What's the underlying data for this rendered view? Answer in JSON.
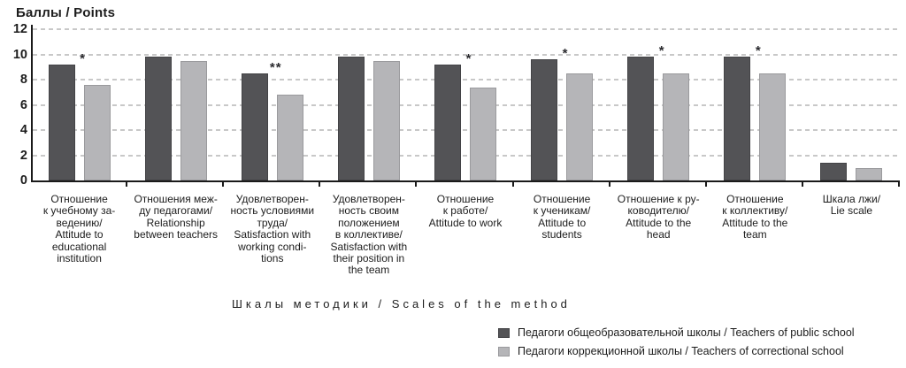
{
  "chart_data": {
    "type": "bar",
    "title": "",
    "ylabel": "Баллы / Points",
    "xlabel": "Шкалы методики / Scales of the method",
    "ylim": [
      0,
      12
    ],
    "ytick_step": 2,
    "grid": "horizontal-dashed",
    "legend_position": "bottom-right",
    "categories": [
      {
        "lines": [
          "Отношение",
          "к учебному за-",
          "ведению/",
          "Attitude to",
          "educational",
          "institution"
        ]
      },
      {
        "lines": [
          "Отношения меж-",
          "ду педагогами/",
          "Relationship",
          "between teachers"
        ]
      },
      {
        "lines": [
          "Удовлетворен-",
          "ность условиями",
          "труда/",
          "Satisfaction with",
          "working condi-",
          "tions"
        ]
      },
      {
        "lines": [
          "Удовлетворен-",
          "ность своим",
          "положением",
          "в коллективе/",
          "Satisfaction with",
          "their position in",
          "the team"
        ]
      },
      {
        "lines": [
          "Отношение",
          "к работе/",
          "Attitude to work"
        ]
      },
      {
        "lines": [
          "Отношение",
          "к ученикам/",
          "Attitude to",
          "students"
        ]
      },
      {
        "lines": [
          "Отношение к ру-",
          "ководителю/",
          "Attitude to the",
          "head"
        ]
      },
      {
        "lines": [
          "Отношение",
          "к коллективу/",
          "Attitude to the",
          "team"
        ]
      },
      {
        "lines": [
          "Шкала лжи/",
          "Lie scale"
        ]
      }
    ],
    "series": [
      {
        "name": "Педагоги общеобразовательной школы / Teachers of public school",
        "color": "#535356",
        "values": [
          9.2,
          9.8,
          8.5,
          9.8,
          9.2,
          9.6,
          9.8,
          9.8,
          1.4
        ]
      },
      {
        "name": "Педагоги коррекционной школы / Teachers of correctional school",
        "color": "#b5b5b8",
        "values": [
          7.6,
          9.5,
          6.8,
          9.5,
          7.4,
          8.5,
          8.5,
          8.5,
          1.0
        ]
      }
    ],
    "significance_markers": [
      "*",
      "",
      "**",
      "",
      "*",
      "*",
      "*",
      "*",
      ""
    ]
  },
  "colors": {
    "axis": "#1a1a1a",
    "gridline": "#c8c8c8",
    "text": "#1c1c1c"
  }
}
